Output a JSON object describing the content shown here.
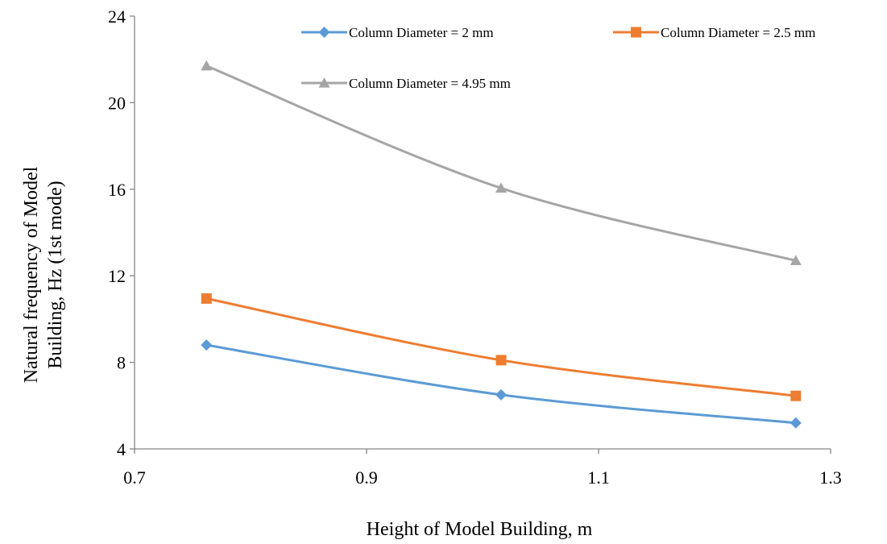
{
  "chart_data": {
    "type": "line",
    "title": "",
    "xlabel": "Height of Model Building, m",
    "ylabel_lines": [
      "Natural frequency of Model",
      "Building, Hz (1st mode)"
    ],
    "xlim": [
      0.7,
      1.3
    ],
    "ylim": [
      4,
      24
    ],
    "x_ticks": [
      0.7,
      0.9,
      1.1,
      1.3
    ],
    "x_tick_labels": [
      "0.7",
      "0.9",
      "1.1",
      "1.3"
    ],
    "y_ticks": [
      4,
      8,
      12,
      16,
      20,
      24
    ],
    "y_tick_labels": [
      "4",
      "8",
      "12",
      "16",
      "20",
      "24"
    ],
    "grid": false,
    "legend_position": "top",
    "smoothed": true,
    "series": [
      {
        "name": "Column Diameter = 2 mm",
        "color": "#5B9BD5",
        "marker": "diamond",
        "x": [
          0.762,
          1.016,
          1.27
        ],
        "y": [
          8.8,
          6.5,
          5.2
        ]
      },
      {
        "name": "Column Diameter = 2.5 mm",
        "color": "#ED7D31",
        "marker": "square",
        "x": [
          0.762,
          1.016,
          1.27
        ],
        "y": [
          10.95,
          8.1,
          6.45
        ]
      },
      {
        "name": "Column Diameter = 4.95 mm",
        "color": "#A5A5A5",
        "marker": "triangle",
        "x": [
          0.762,
          1.016,
          1.27
        ],
        "y": [
          21.7,
          16.05,
          12.7
        ]
      }
    ]
  }
}
